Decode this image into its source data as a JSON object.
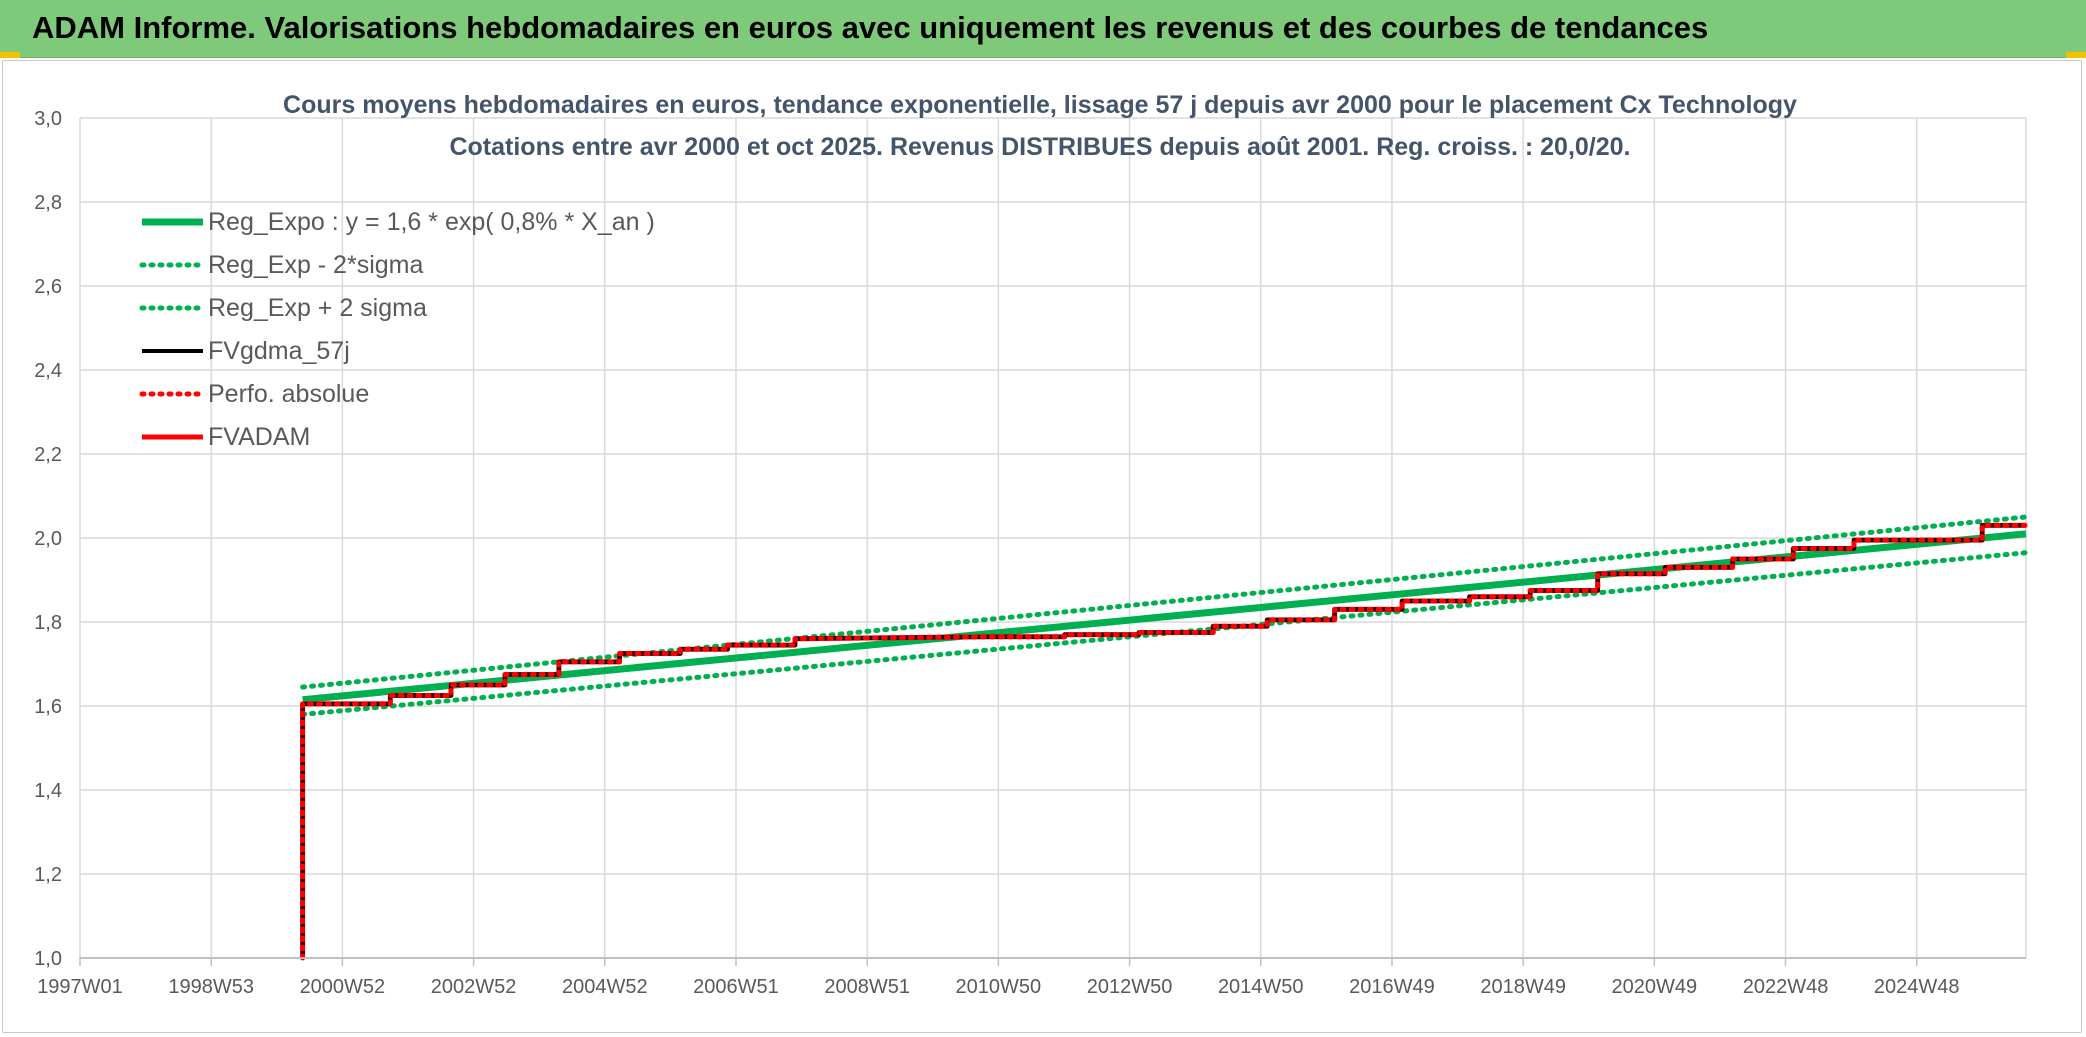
{
  "header": {
    "title": "ADAM Informe. Valorisations hebdomadaires en euros avec uniquement les revenus et des courbes de tendances",
    "background": "#7fc97a"
  },
  "chart_data": {
    "type": "line",
    "title": "Cours moyens hebdomadaires en euros, tendance exponentielle, lissage 57 j depuis avr 2000 pour le placement Cx Technology",
    "subtitle": "Cotations entre avr 2000 et oct 2025. Revenus DISTRIBUES depuis août 2001. Reg. croiss. : 20,0/20.",
    "xlabel": "",
    "ylabel": "",
    "x_range": [
      1997.0,
      2025.85
    ],
    "ylim": [
      1.0,
      3.0
    ],
    "yticks": [
      "1,0",
      "1,2",
      "1,4",
      "1,6",
      "1,8",
      "2,0",
      "2,2",
      "2,4",
      "2,6",
      "2,8",
      "3,0"
    ],
    "xticks": [
      "1997W01",
      "1998W53",
      "2000W52",
      "2002W52",
      "2004W52",
      "2006W51",
      "2008W51",
      "2010W50",
      "2012W50",
      "2014W50",
      "2016W49",
      "2018W49",
      "2020W49",
      "2022W48",
      "2024W48"
    ],
    "grid": true,
    "legend_position": "top-left",
    "series": [
      {
        "name": "Reg_Expo : y = 1,6 * exp( 0,8% *  X_an )",
        "color": "#00b050",
        "style": "solid",
        "x": [
          2000.3,
          2025.85
        ],
        "values": [
          1.615,
          2.01
        ]
      },
      {
        "name": "Reg_Exp - 2*sigma",
        "color": "#00b050",
        "style": "dotted",
        "x": [
          2000.3,
          2025.85
        ],
        "values": [
          1.58,
          1.965
        ]
      },
      {
        "name": "Reg_Exp + 2 sigma",
        "color": "#00b050",
        "style": "dotted",
        "x": [
          2000.3,
          2025.85
        ],
        "values": [
          1.645,
          2.05
        ]
      },
      {
        "name": "FVgdma_57j",
        "color": "#000000",
        "style": "solid",
        "x": [
          2000.3,
          2000.3,
          2001.6,
          2001.6,
          2002.5,
          2002.5,
          2003.3,
          2003.3,
          2004.1,
          2004.1,
          2005.0,
          2005.0,
          2005.9,
          2005.9,
          2006.6,
          2006.6,
          2007.6,
          2007.6,
          2010.5,
          2011.6,
          2011.6,
          2012.7,
          2012.7,
          2013.8,
          2013.8,
          2014.6,
          2014.6,
          2015.6,
          2015.6,
          2016.6,
          2016.6,
          2017.6,
          2017.6,
          2018.5,
          2018.5,
          2019.5,
          2019.5,
          2020.5,
          2020.5,
          2021.5,
          2021.5,
          2022.4,
          2022.4,
          2023.3,
          2023.3,
          2024.3,
          2025.2,
          2025.2,
          2025.85
        ],
        "values": [
          1.0,
          1.605,
          1.605,
          1.625,
          1.625,
          1.65,
          1.65,
          1.675,
          1.675,
          1.705,
          1.705,
          1.725,
          1.725,
          1.735,
          1.735,
          1.745,
          1.745,
          1.76,
          1.765,
          1.765,
          1.77,
          1.77,
          1.775,
          1.775,
          1.79,
          1.79,
          1.805,
          1.805,
          1.83,
          1.83,
          1.85,
          1.85,
          1.86,
          1.86,
          1.875,
          1.875,
          1.915,
          1.915,
          1.93,
          1.93,
          1.95,
          1.95,
          1.975,
          1.975,
          1.995,
          1.995,
          1.995,
          2.03,
          2.03
        ]
      },
      {
        "name": "Perfo. absolue",
        "color": "#ff0000",
        "style": "dotted",
        "x": [
          2000.3,
          2000.3,
          2001.6,
          2001.6,
          2002.5,
          2002.5,
          2003.3,
          2003.3,
          2004.1,
          2004.1,
          2005.0,
          2005.0,
          2005.9,
          2005.9,
          2006.6,
          2006.6,
          2007.6,
          2007.6,
          2010.5,
          2011.6,
          2011.6,
          2012.7,
          2012.7,
          2013.8,
          2013.8,
          2014.6,
          2014.6,
          2015.6,
          2015.6,
          2016.6,
          2016.6,
          2017.6,
          2017.6,
          2018.5,
          2018.5,
          2019.5,
          2019.5,
          2020.5,
          2020.5,
          2021.5,
          2021.5,
          2022.4,
          2022.4,
          2023.3,
          2023.3,
          2024.3,
          2025.2,
          2025.2,
          2025.85
        ],
        "values": [
          1.0,
          1.605,
          1.605,
          1.625,
          1.625,
          1.65,
          1.65,
          1.675,
          1.675,
          1.705,
          1.705,
          1.725,
          1.725,
          1.735,
          1.735,
          1.745,
          1.745,
          1.76,
          1.765,
          1.765,
          1.77,
          1.77,
          1.775,
          1.775,
          1.79,
          1.79,
          1.805,
          1.805,
          1.83,
          1.83,
          1.85,
          1.85,
          1.86,
          1.86,
          1.875,
          1.875,
          1.915,
          1.915,
          1.93,
          1.93,
          1.95,
          1.95,
          1.975,
          1.975,
          1.995,
          1.995,
          1.995,
          2.03,
          2.03
        ]
      },
      {
        "name": "FVADAM",
        "color": "#ff0000",
        "style": "solid",
        "x": [
          2000.3,
          2000.3,
          2001.6,
          2001.6,
          2002.5,
          2002.5,
          2003.3,
          2003.3,
          2004.1,
          2004.1,
          2005.0,
          2005.0,
          2005.9,
          2005.9,
          2006.6,
          2006.6,
          2007.6,
          2007.6,
          2010.5,
          2011.6,
          2011.6,
          2012.7,
          2012.7,
          2013.8,
          2013.8,
          2014.6,
          2014.6,
          2015.6,
          2015.6,
          2016.6,
          2016.6,
          2017.6,
          2017.6,
          2018.5,
          2018.5,
          2019.5,
          2019.5,
          2020.5,
          2020.5,
          2021.5,
          2021.5,
          2022.4,
          2022.4,
          2023.3,
          2023.3,
          2024.3,
          2025.2,
          2025.2,
          2025.85
        ],
        "values": [
          1.0,
          1.605,
          1.605,
          1.625,
          1.625,
          1.65,
          1.65,
          1.675,
          1.675,
          1.705,
          1.705,
          1.725,
          1.725,
          1.735,
          1.735,
          1.745,
          1.745,
          1.76,
          1.765,
          1.765,
          1.77,
          1.77,
          1.775,
          1.775,
          1.79,
          1.79,
          1.805,
          1.805,
          1.83,
          1.83,
          1.85,
          1.85,
          1.86,
          1.86,
          1.875,
          1.875,
          1.915,
          1.915,
          1.93,
          1.93,
          1.95,
          1.95,
          1.975,
          1.975,
          1.995,
          1.995,
          1.995,
          2.03,
          2.03
        ]
      }
    ]
  }
}
